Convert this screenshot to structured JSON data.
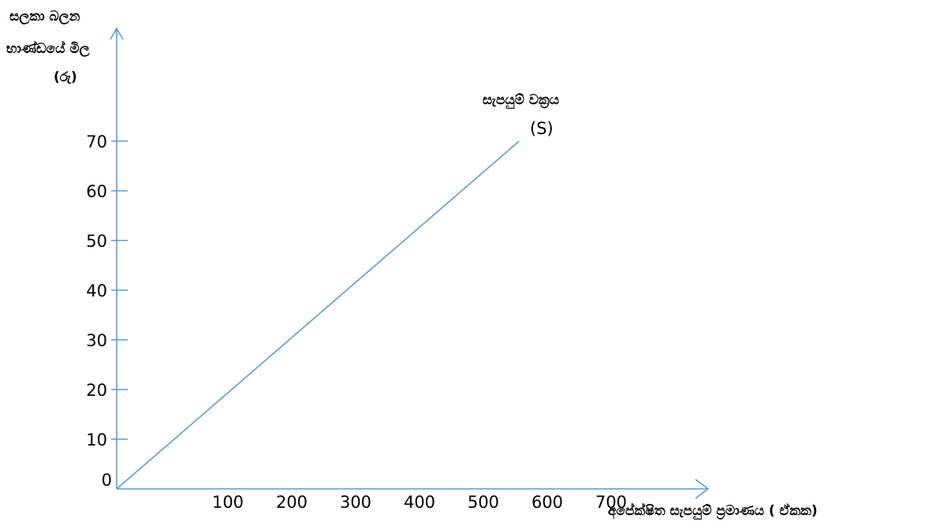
{
  "chart_data": {
    "type": "line",
    "title": "",
    "ylabel_lines": [
      "සලකා බලන",
      "භාණ්ඩයේ මිල",
      "(රු)"
    ],
    "xlabel": "අපේක්ෂිත සැපයුම් ප්‍රමාණය ( ඒකක)",
    "x_ticks": [
      "100",
      "200",
      "300",
      "400",
      "500",
      "600",
      "700"
    ],
    "y_ticks": [
      "0",
      "10",
      "20",
      "30",
      "40",
      "50",
      "60",
      "70"
    ],
    "series": [
      {
        "name": "සැපයුම් වක්‍රය",
        "symbol": "(S)",
        "x": [
          0,
          630
        ],
        "y": [
          0,
          70
        ]
      }
    ],
    "xlim": [
      0,
      900
    ],
    "ylim": [
      0,
      70
    ],
    "grid": false,
    "legend": "none",
    "colors": {
      "axis": "#5b9bd5",
      "line": "#5b9bd5",
      "text": "#000000"
    }
  }
}
